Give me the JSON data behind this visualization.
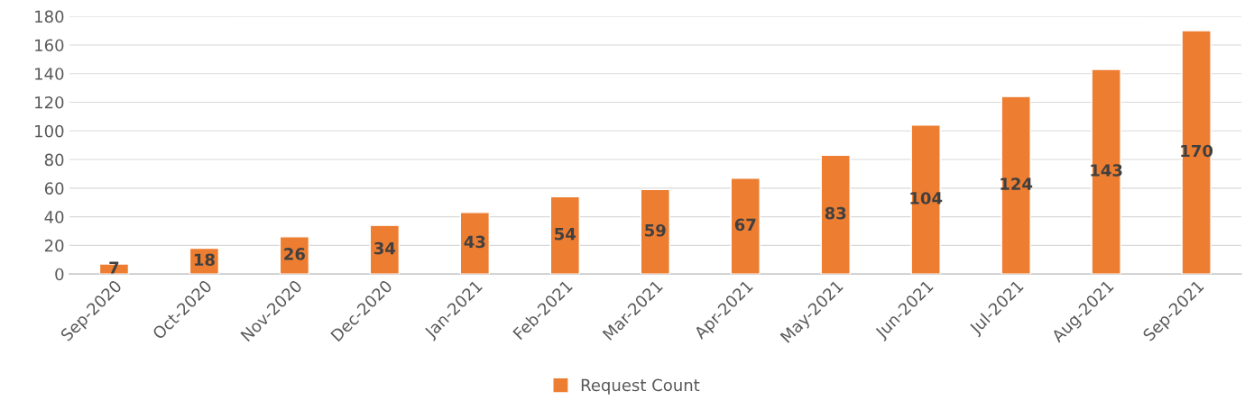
{
  "chart_data": {
    "type": "bar",
    "categories": [
      "Sep-2020",
      "Oct-2020",
      "Nov-2020",
      "Dec-2020",
      "Jan-2021",
      "Feb-2021",
      "Mar-2021",
      "Apr-2021",
      "May-2021",
      "Jun-2021",
      "Jul-2021",
      "Aug-2021",
      "Sep-2021"
    ],
    "series": [
      {
        "name": "Request Count",
        "color": "#ed7d31",
        "values": [
          7,
          18,
          26,
          34,
          43,
          54,
          59,
          67,
          83,
          104,
          124,
          143,
          170
        ]
      }
    ],
    "ylim": [
      0,
      180
    ],
    "yticks": [
      0,
      20,
      40,
      60,
      80,
      100,
      120,
      140,
      160,
      180
    ],
    "grid": "y",
    "legend": "bottom",
    "data_labels": true
  }
}
